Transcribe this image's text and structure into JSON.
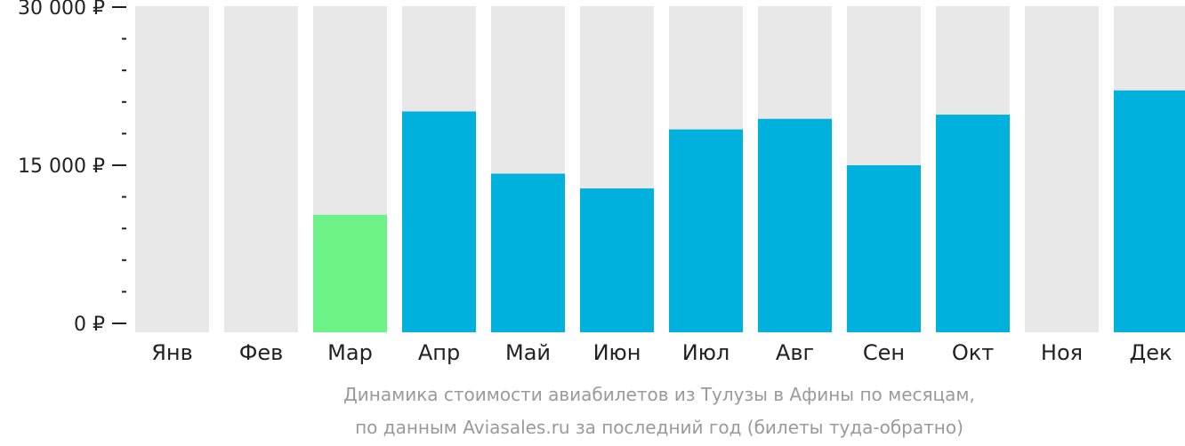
{
  "chart_data": {
    "type": "bar",
    "categories": [
      "Янв",
      "Фев",
      "Мар",
      "Апр",
      "Май",
      "Июн",
      "Июл",
      "Авг",
      "Сен",
      "Окт",
      "Ноя",
      "Дек"
    ],
    "values": [
      null,
      null,
      10300,
      20100,
      14200,
      12800,
      18400,
      19400,
      15000,
      19800,
      null,
      22100
    ],
    "highlight_index": 2,
    "ylim": [
      0,
      30000
    ],
    "yticks": [
      {
        "value": 0,
        "label": "0 ₽"
      },
      {
        "value": 15000,
        "label": "15 000 ₽"
      },
      {
        "value": 30000,
        "label": "30 000 ₽"
      }
    ],
    "minor_tick_step": 3000,
    "grid": false,
    "legend": "none",
    "caption_lines": [
      "Динамика стоимости авиабилетов из Тулузы в Афины по месяцам,",
      "по данным Aviasales.ru за последний год (билеты туда-обратно)"
    ],
    "colors": {
      "bar": "#00b1dd",
      "highlight": "#6cf287",
      "track": "#e8e8e8",
      "axis": "#222222",
      "caption": "#9a9a9a"
    }
  }
}
